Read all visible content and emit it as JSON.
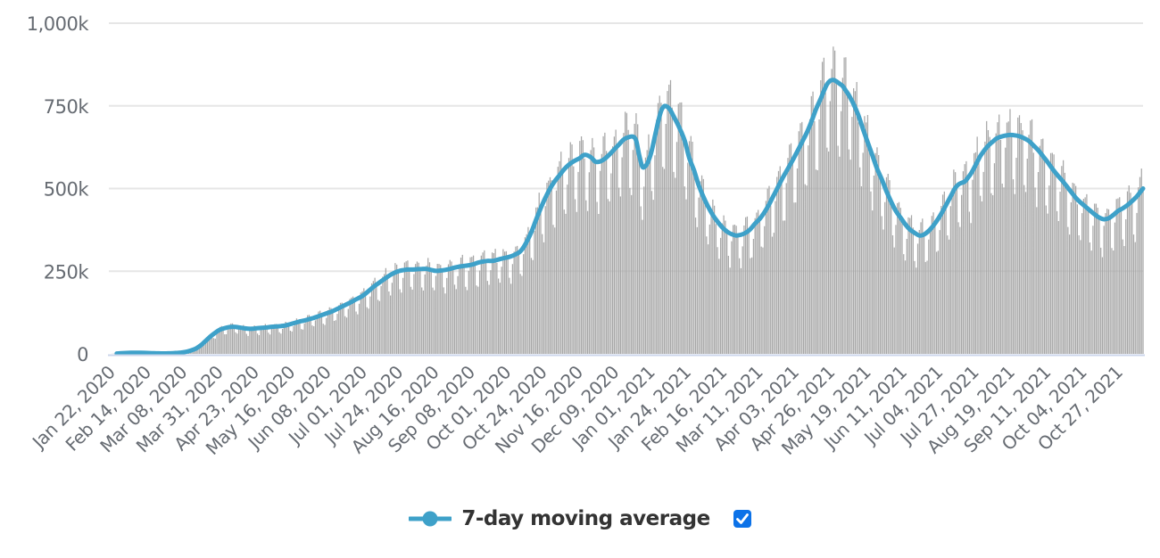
{
  "chart_data": {
    "type": "combo",
    "title": "",
    "x_axis": {
      "first_tick": "Jan 22, 2020",
      "tick_interval_days": 23,
      "total_days": 662,
      "tick_labels": [
        "Jan 22, 2020",
        "Feb 14, 2020",
        "Mar 08, 2020",
        "Mar 31, 2020",
        "Apr 23, 2020",
        "May 16, 2020",
        "Jun 08, 2020",
        "Jul 01, 2020",
        "Jul 24, 2020",
        "Aug 16, 2020",
        "Sep 08, 2020",
        "Oct 01, 2020",
        "Oct 24, 2020",
        "Nov 16, 2020",
        "Dec 09, 2020",
        "Jan 01, 2021",
        "Jan 24, 2021",
        "Feb 16, 2021",
        "Mar 11, 2021",
        "Apr 03, 2021",
        "Apr 26, 2021",
        "May 19, 2021",
        "Jun 11, 2021",
        "Jul 04, 2021",
        "Jul 27, 2021",
        "Aug 19, 2021",
        "Sep 11, 2021",
        "Oct 04, 2021",
        "Oct 27, 2021"
      ]
    },
    "y_axis": {
      "unit": "thousands",
      "range": [
        0,
        1000
      ],
      "ticks": [
        {
          "value": 0,
          "label": "0"
        },
        {
          "value": 250,
          "label": "250k"
        },
        {
          "value": 500,
          "label": "500k"
        },
        {
          "value": 750,
          "label": "750k"
        },
        {
          "value": 1000,
          "label": "1,000k"
        }
      ]
    },
    "series": [
      {
        "name": "daily-values-bars",
        "type": "bar",
        "color": "#a7a7a7",
        "note": "daily bars oscillate weekly around the 7-day moving average",
        "weekday_multipliers_from_start": [
          1.06,
          1.1,
          1.1,
          1.0,
          0.78,
          0.74,
          0.92
        ],
        "start_weekday": "Wednesday",
        "jitter_amplitude": 0.07
      },
      {
        "name": "7-day moving average",
        "type": "line",
        "color": "#3ea1c9",
        "points_day_value_k": [
          [
            5,
            1.0
          ],
          [
            8,
            2.0
          ],
          [
            11,
            2.7
          ],
          [
            14,
            3.2
          ],
          [
            17,
            3.5
          ],
          [
            20,
            3.5
          ],
          [
            23,
            3.0
          ],
          [
            26,
            2.4
          ],
          [
            29,
            1.9
          ],
          [
            32,
            1.5
          ],
          [
            35,
            1.3
          ],
          [
            38,
            1.5
          ],
          [
            41,
            2.1
          ],
          [
            44,
            3.0
          ],
          [
            47,
            4.5
          ],
          [
            50,
            7
          ],
          [
            53,
            11
          ],
          [
            56,
            17
          ],
          [
            59,
            27
          ],
          [
            62,
            40
          ],
          [
            65,
            53
          ],
          [
            68,
            64
          ],
          [
            71,
            73
          ],
          [
            74,
            78
          ],
          [
            77,
            81
          ],
          [
            80,
            82
          ],
          [
            83,
            80
          ],
          [
            86,
            78
          ],
          [
            89,
            76
          ],
          [
            92,
            76
          ],
          [
            95,
            78
          ],
          [
            98,
            79
          ],
          [
            101,
            80
          ],
          [
            104,
            82
          ],
          [
            107,
            83
          ],
          [
            110,
            84
          ],
          [
            113,
            86
          ],
          [
            116,
            90
          ],
          [
            119,
            94
          ],
          [
            122,
            98
          ],
          [
            125,
            101
          ],
          [
            128,
            105
          ],
          [
            131,
            109
          ],
          [
            134,
            114
          ],
          [
            137,
            119
          ],
          [
            140,
            124
          ],
          [
            143,
            129
          ],
          [
            146,
            136
          ],
          [
            149,
            143
          ],
          [
            152,
            150
          ],
          [
            155,
            157
          ],
          [
            158,
            165
          ],
          [
            161,
            172
          ],
          [
            164,
            182
          ],
          [
            167,
            194
          ],
          [
            170,
            206
          ],
          [
            173,
            216
          ],
          [
            176,
            226
          ],
          [
            179,
            236
          ],
          [
            182,
            244
          ],
          [
            185,
            250
          ],
          [
            188,
            253
          ],
          [
            191,
            255
          ],
          [
            194,
            255
          ],
          [
            197,
            256
          ],
          [
            200,
            257
          ],
          [
            203,
            257
          ],
          [
            206,
            254
          ],
          [
            209,
            251
          ],
          [
            212,
            252
          ],
          [
            215,
            254
          ],
          [
            218,
            257
          ],
          [
            221,
            261
          ],
          [
            224,
            264
          ],
          [
            227,
            266
          ],
          [
            230,
            268
          ],
          [
            233,
            271
          ],
          [
            236,
            276
          ],
          [
            239,
            279
          ],
          [
            242,
            281
          ],
          [
            245,
            281
          ],
          [
            248,
            284
          ],
          [
            251,
            288
          ],
          [
            254,
            291
          ],
          [
            257,
            295
          ],
          [
            260,
            301
          ],
          [
            263,
            310
          ],
          [
            266,
            330
          ],
          [
            270,
            368
          ],
          [
            273,
            405
          ],
          [
            276,
            440
          ],
          [
            279,
            472
          ],
          [
            282,
            500
          ],
          [
            285,
            522
          ],
          [
            288,
            540
          ],
          [
            291,
            558
          ],
          [
            294,
            572
          ],
          [
            297,
            582
          ],
          [
            301,
            592
          ],
          [
            304,
            602
          ],
          [
            308,
            595
          ],
          [
            311,
            581
          ],
          [
            314,
            582
          ],
          [
            317,
            590
          ],
          [
            320,
            603
          ],
          [
            323,
            618
          ],
          [
            326,
            633
          ],
          [
            329,
            648
          ],
          [
            332,
            655
          ],
          [
            335,
            657
          ],
          [
            337,
            645
          ],
          [
            339,
            600
          ],
          [
            341,
            566
          ],
          [
            343,
            568
          ],
          [
            345,
            585
          ],
          [
            347,
            615
          ],
          [
            349,
            658
          ],
          [
            351,
            700
          ],
          [
            353,
            735
          ],
          [
            355,
            749
          ],
          [
            357,
            747
          ],
          [
            359,
            736
          ],
          [
            361,
            718
          ],
          [
            363,
            700
          ],
          [
            365,
            680
          ],
          [
            368,
            645
          ],
          [
            371,
            592
          ],
          [
            374,
            555
          ],
          [
            377,
            510
          ],
          [
            380,
            475
          ],
          [
            383,
            445
          ],
          [
            386,
            420
          ],
          [
            389,
            400
          ],
          [
            392,
            383
          ],
          [
            395,
            370
          ],
          [
            398,
            362
          ],
          [
            401,
            358
          ],
          [
            404,
            360
          ],
          [
            407,
            366
          ],
          [
            410,
            377
          ],
          [
            413,
            394
          ],
          [
            416,
            408
          ],
          [
            419,
            428
          ],
          [
            422,
            452
          ],
          [
            425,
            480
          ],
          [
            428,
            508
          ],
          [
            431,
            535
          ],
          [
            434,
            560
          ],
          [
            437,
            585
          ],
          [
            440,
            612
          ],
          [
            443,
            640
          ],
          [
            446,
            668
          ],
          [
            449,
            702
          ],
          [
            452,
            740
          ],
          [
            455,
            772
          ],
          [
            457,
            795
          ],
          [
            459,
            815
          ],
          [
            461,
            826
          ],
          [
            463,
            828
          ],
          [
            465,
            824
          ],
          [
            467,
            817
          ],
          [
            469,
            810
          ],
          [
            471,
            796
          ],
          [
            473,
            782
          ],
          [
            476,
            755
          ],
          [
            479,
            722
          ],
          [
            482,
            680
          ],
          [
            485,
            640
          ],
          [
            488,
            600
          ],
          [
            491,
            560
          ],
          [
            494,
            528
          ],
          [
            497,
            492
          ],
          [
            500,
            460
          ],
          [
            503,
            432
          ],
          [
            506,
            412
          ],
          [
            509,
            392
          ],
          [
            512,
            376
          ],
          [
            515,
            366
          ],
          [
            518,
            358
          ],
          [
            521,
            361
          ],
          [
            524,
            372
          ],
          [
            527,
            388
          ],
          [
            530,
            408
          ],
          [
            533,
            432
          ],
          [
            536,
            458
          ],
          [
            539,
            485
          ],
          [
            541,
            502
          ],
          [
            543,
            512
          ],
          [
            545,
            517
          ],
          [
            547,
            521
          ],
          [
            549,
            532
          ],
          [
            551,
            545
          ],
          [
            553,
            562
          ],
          [
            555,
            580
          ],
          [
            557,
            598
          ],
          [
            559,
            612
          ],
          [
            561,
            624
          ],
          [
            563,
            634
          ],
          [
            565,
            642
          ],
          [
            567,
            650
          ],
          [
            569,
            655
          ],
          [
            571,
            658
          ],
          [
            573,
            660
          ],
          [
            576,
            662
          ],
          [
            579,
            661
          ],
          [
            582,
            658
          ],
          [
            585,
            652
          ],
          [
            588,
            644
          ],
          [
            591,
            630
          ],
          [
            594,
            616
          ],
          [
            597,
            598
          ],
          [
            600,
            580
          ],
          [
            603,
            560
          ],
          [
            606,
            542
          ],
          [
            609,
            526
          ],
          [
            612,
            508
          ],
          [
            615,
            490
          ],
          [
            618,
            472
          ],
          [
            621,
            458
          ],
          [
            624,
            446
          ],
          [
            627,
            434
          ],
          [
            630,
            422
          ],
          [
            633,
            412
          ],
          [
            636,
            407
          ],
          [
            639,
            410
          ],
          [
            642,
            420
          ],
          [
            645,
            432
          ],
          [
            648,
            440
          ],
          [
            651,
            450
          ],
          [
            654,
            462
          ],
          [
            657,
            476
          ],
          [
            659,
            488
          ],
          [
            661,
            500
          ]
        ]
      }
    ],
    "legend": {
      "label": "7-day moving average",
      "checkbox_checked": true
    },
    "grid": true,
    "legend_position": "bottom-center",
    "colors": {
      "bar": "#a7a7a7",
      "line": "#3ea1c9",
      "gridline": "#e6e6e6",
      "axis_line": "#ccd6eb",
      "tick_text": "#666b72",
      "legend_text": "#333333",
      "checkbox": "#0c72e8",
      "checkmark": "#ffffff",
      "background": "#ffffff"
    }
  }
}
